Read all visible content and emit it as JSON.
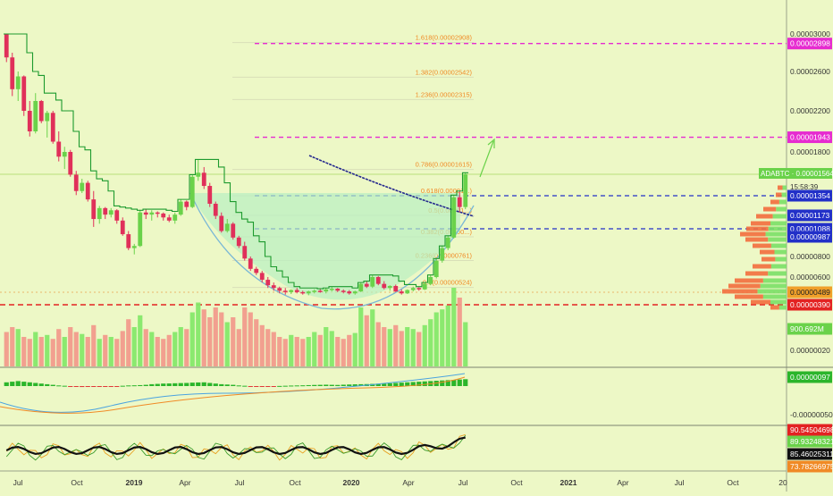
{
  "colors": {
    "background": "#edf8c6",
    "up": "#6ad24a",
    "down": "#e0305a",
    "step_line": "#1d9a2e",
    "fib_label": "#f08a25",
    "fib_line": "#d9dfb8",
    "magenta": "#e62bd0",
    "blue": "#2230c8",
    "red": "#e32222",
    "lime": "#6ad24a"
  },
  "price_axis": {
    "ticks": [
      "0.00003000",
      "0.00002600",
      "0.00002200",
      "0.00001800",
      "0.00000800",
      "0.00000600",
      "0.00000020"
    ],
    "badges": [
      {
        "text": "0.00002898",
        "color": "#e62bd0",
        "text_color": "#ffffff",
        "price": 2898
      },
      {
        "text": "0.00001943",
        "color": "#e62bd0",
        "text_color": "#ffffff",
        "price": 1943
      },
      {
        "text": "0.00001354",
        "color": "#2230c8",
        "text_color": "#ffffff",
        "price": 1354
      },
      {
        "text": "0.00001173",
        "color": "#2230c8",
        "text_color": "#ffffff",
        "price": 1173
      },
      {
        "text": "0.00001088",
        "color": "#2230c8",
        "text_color": "#ffffff",
        "price": 1088
      },
      {
        "text": "0.00000987",
        "color": "#2230c8",
        "text_color": "#ffffff",
        "price": 987
      },
      {
        "text": "0.00000489",
        "color": "#f0a02a",
        "text_color": "#222222",
        "price": 489
      },
      {
        "text": "0.00000390",
        "color": "#e32222",
        "text_color": "#ffffff",
        "price": 390
      }
    ],
    "countdown": "15:58:39",
    "volume_badge": "900.692M",
    "symbol_label": "ADABTC",
    "symbol_price": "0.00001564"
  },
  "fib_levels": [
    {
      "label": "1.618(0.00002908)",
      "price": 2908
    },
    {
      "label": "1.382(0.00002542)",
      "price": 2542
    },
    {
      "label": "1.236(0.00002315)",
      "price": 2315
    },
    {
      "label": "0.786(0.00001615)",
      "price": 1615
    },
    {
      "label": "0.618(0.00001...)",
      "price": 1354
    },
    {
      "label": "0.5(0.00001...)",
      "price": 1173
    },
    {
      "label": "0.382(0.00000...)",
      "price": 987
    },
    {
      "label": "0.236(0.00000761)",
      "price": 761
    },
    {
      "label": "0.0(0.00000524)",
      "price": 524
    }
  ],
  "macd_pane": {
    "badge": "0.00000097",
    "tick": "-0.00000050"
  },
  "stoch_pane": {
    "badges": [
      {
        "text": "90.54504698",
        "color": "#e32222",
        "text_color": "#ffffff"
      },
      {
        "text": "89.93248321",
        "color": "#6ad24a",
        "text_color": "#ffffff"
      },
      {
        "text": "85.46025311",
        "color": "#111111",
        "text_color": "#ffffff"
      },
      {
        "text": "73.78266975",
        "color": "#f08a25",
        "text_color": "#ffffff"
      }
    ]
  },
  "time_axis": {
    "labels": [
      "Jul",
      "Oct",
      "2019",
      "Apr",
      "Jul",
      "Oct",
      "2020",
      "Apr",
      "Jul",
      "Oct",
      "2021",
      "Apr",
      "Jul",
      "Oct",
      "20"
    ]
  },
  "chart_data": {
    "type": "candlestick",
    "symbol": "ADABTC",
    "timeframe": "weekly",
    "price_unit": "BTC x 1e-8 (satoshi)",
    "candles_ohlc": [
      [
        3000,
        3000,
        2700,
        2750
      ],
      [
        2750,
        2800,
        2350,
        2420
      ],
      [
        2420,
        2600,
        2300,
        2550
      ],
      [
        2550,
        2560,
        2150,
        2200
      ],
      [
        2200,
        2300,
        1950,
        2000
      ],
      [
        2000,
        2380,
        1980,
        2300
      ],
      [
        2300,
        2310,
        2080,
        2100
      ],
      [
        2100,
        2200,
        1940,
        2180
      ],
      [
        2180,
        2200,
        1880,
        1900
      ],
      [
        1900,
        2000,
        1700,
        1750
      ],
      [
        1750,
        1850,
        1620,
        1800
      ],
      [
        1800,
        1820,
        1540,
        1560
      ],
      [
        1560,
        1600,
        1360,
        1400
      ],
      [
        1400,
        1520,
        1380,
        1480
      ],
      [
        1480,
        1500,
        1300,
        1320
      ],
      [
        1320,
        1400,
        1100,
        1150
      ],
      [
        1150,
        1260,
        1120,
        1240
      ],
      [
        1240,
        1250,
        1150,
        1180
      ],
      [
        1180,
        1240,
        1160,
        1220
      ],
      [
        1220,
        1230,
        1120,
        1140
      ],
      [
        1140,
        1160,
        1000,
        1020
      ],
      [
        1020,
        1060,
        860,
        880
      ],
      [
        880,
        920,
        820,
        900
      ],
      [
        900,
        1220,
        890,
        1200
      ],
      [
        1200,
        1230,
        1150,
        1180
      ],
      [
        1180,
        1220,
        1140,
        1200
      ],
      [
        1200,
        1210,
        1160,
        1190
      ],
      [
        1190,
        1200,
        1140,
        1160
      ],
      [
        1160,
        1180,
        1130,
        1140
      ],
      [
        1140,
        1200,
        1120,
        1180
      ],
      [
        1180,
        1320,
        1170,
        1300
      ],
      [
        1300,
        1310,
        1220,
        1250
      ],
      [
        1250,
        1560,
        1240,
        1540
      ],
      [
        1540,
        1720,
        1500,
        1580
      ],
      [
        1580,
        1640,
        1420,
        1450
      ],
      [
        1450,
        1480,
        1250,
        1280
      ],
      [
        1280,
        1300,
        1150,
        1170
      ],
      [
        1170,
        1200,
        1040,
        1060
      ],
      [
        1060,
        1150,
        1040,
        1120
      ],
      [
        1120,
        1130,
        960,
        980
      ],
      [
        980,
        1000,
        880,
        900
      ],
      [
        900,
        940,
        760,
        780
      ],
      [
        780,
        800,
        660,
        680
      ],
      [
        680,
        700,
        620,
        640
      ],
      [
        640,
        660,
        560,
        580
      ],
      [
        580,
        600,
        520,
        540
      ],
      [
        540,
        560,
        500,
        520
      ],
      [
        520,
        530,
        480,
        500
      ],
      [
        500,
        520,
        470,
        490
      ],
      [
        490,
        510,
        475,
        505
      ],
      [
        505,
        520,
        480,
        490
      ],
      [
        490,
        500,
        470,
        480
      ],
      [
        480,
        500,
        465,
        495
      ],
      [
        495,
        510,
        480,
        500
      ],
      [
        500,
        515,
        485,
        495
      ],
      [
        495,
        520,
        480,
        510
      ],
      [
        510,
        530,
        495,
        515
      ],
      [
        515,
        520,
        490,
        500
      ],
      [
        500,
        510,
        480,
        495
      ],
      [
        495,
        505,
        470,
        480
      ],
      [
        480,
        500,
        470,
        495
      ],
      [
        495,
        560,
        490,
        550
      ],
      [
        550,
        570,
        520,
        530
      ],
      [
        530,
        620,
        520,
        600
      ],
      [
        600,
        610,
        540,
        550
      ],
      [
        550,
        570,
        510,
        520
      ],
      [
        520,
        540,
        500,
        535
      ],
      [
        535,
        545,
        490,
        495
      ],
      [
        495,
        510,
        470,
        480
      ],
      [
        480,
        510,
        475,
        505
      ],
      [
        505,
        530,
        495,
        520
      ],
      [
        520,
        525,
        500,
        510
      ],
      [
        510,
        560,
        505,
        550
      ],
      [
        550,
        620,
        540,
        600
      ],
      [
        600,
        780,
        590,
        760
      ],
      [
        760,
        900,
        740,
        880
      ],
      [
        880,
        1000,
        860,
        980
      ],
      [
        980,
        1360,
        970,
        1340
      ],
      [
        1340,
        1400,
        1200,
        1250
      ],
      [
        1250,
        1580,
        1230,
        1564
      ]
    ],
    "volume_scale_note": "relative",
    "volumes": [
      35,
      40,
      38,
      30,
      28,
      35,
      30,
      32,
      28,
      38,
      30,
      40,
      35,
      33,
      30,
      42,
      28,
      32,
      30,
      28,
      36,
      48,
      40,
      52,
      38,
      35,
      30,
      28,
      32,
      35,
      40,
      38,
      55,
      65,
      58,
      50,
      60,
      55,
      45,
      50,
      38,
      60,
      55,
      48,
      42,
      38,
      35,
      30,
      28,
      32,
      30,
      28,
      30,
      35,
      32,
      40,
      36,
      30,
      28,
      32,
      34,
      60,
      52,
      58,
      45,
      40,
      38,
      42,
      36,
      40,
      38,
      35,
      42,
      48,
      55,
      58,
      62,
      80,
      70,
      45
    ],
    "macd_hist": [
      0.6,
      0.7,
      0.8,
      0.7,
      0.6,
      0.5,
      0.4,
      0.3,
      0.2,
      0.1,
      0.05,
      -0.05,
      -0.1,
      -0.15,
      -0.12,
      -0.1,
      -0.08,
      -0.05,
      -0.03,
      -0.02,
      0.05,
      0.1,
      0.12,
      0.15,
      0.2,
      0.3,
      0.35,
      0.4,
      0.42,
      0.45,
      0.48,
      0.5,
      0.55,
      0.58,
      0.6,
      0.5,
      0.4,
      0.3,
      0.25,
      0.2,
      0.1,
      0.05,
      -0.05,
      -0.08,
      -0.1,
      -0.08,
      -0.05,
      0.02,
      0.05,
      0.08,
      0.1,
      0.12,
      0.15,
      0.18,
      0.2,
      0.22,
      0.2,
      0.18,
      0.22,
      0.25,
      0.28,
      0.3,
      0.32,
      0.35,
      0.38,
      0.4,
      0.45,
      0.5,
      0.55,
      0.6,
      0.65,
      0.7,
      0.75,
      0.8,
      0.85,
      0.9,
      0.95,
      1.0,
      1.05,
      1.1
    ],
    "fib_levels": [
      2908,
      2542,
      2315,
      1615,
      1354,
      1173,
      987,
      761,
      524
    ],
    "horizontal_levels": {
      "magenta": [
        2898,
        1943
      ],
      "blue": [
        1354,
        1088
      ],
      "red": [
        390
      ]
    },
    "ylim": [
      20,
      3200
    ]
  }
}
